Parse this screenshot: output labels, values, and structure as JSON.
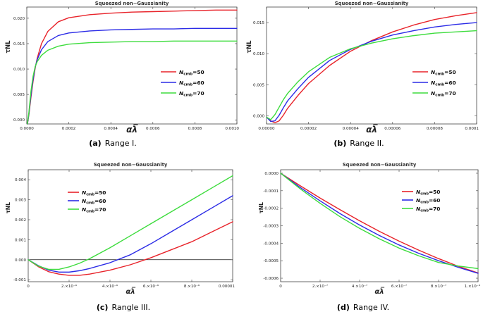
{
  "colors": {
    "red": "#e8232a",
    "blue": "#2b2be6",
    "green": "#3ddc3d"
  },
  "chart_data": [
    {
      "type": "line",
      "panel": "a",
      "title": "Squeezed non−Gaussianity",
      "ylabel": "τNL",
      "xlabel": "αλ̅",
      "caption_label": "(a)",
      "caption_text": "Range I.",
      "xlim": [
        0,
        0.001
      ],
      "ylim": [
        -0.0008,
        0.0222
      ],
      "xticks": [
        0,
        0.0002,
        0.0004,
        0.0006,
        0.0008,
        0.001
      ],
      "xtick_labels": [
        "0.0000",
        "0.0002",
        "0.0004",
        "0.0006",
        "0.0008",
        "0.0010"
      ],
      "yticks": [
        0,
        0.005,
        0.01,
        0.015,
        0.02
      ],
      "ytick_labels": [
        "0.000",
        "0.005",
        "0.010",
        "0.015",
        "0.020"
      ],
      "zero_line": false,
      "legend_position": "right-middle",
      "legend": [
        "N_cmb=50",
        "N_cmb=60",
        "N_cmb=70"
      ],
      "series": [
        {
          "name": "N_cmb=50",
          "color": "red",
          "x": [
            3e-06,
            1e-05,
            2e-05,
            3e-05,
            4e-05,
            5e-05,
            7e-05,
            0.0001,
            0.00015,
            0.0002,
            0.0003,
            0.0004,
            0.0005,
            0.0006,
            0.0007,
            0.0008,
            0.0009,
            0.001
          ],
          "y": [
            -0.0008,
            0.001,
            0.0045,
            0.0076,
            0.0102,
            0.0122,
            0.015,
            0.0174,
            0.0193,
            0.0201,
            0.0207,
            0.021,
            0.0212,
            0.0213,
            0.0214,
            0.0215,
            0.0216,
            0.0216
          ]
        },
        {
          "name": "N_cmb=60",
          "color": "blue",
          "x": [
            3e-06,
            1e-05,
            2e-05,
            3e-05,
            4e-05,
            5e-05,
            7e-05,
            0.0001,
            0.00015,
            0.0002,
            0.0003,
            0.0004,
            0.0005,
            0.0006,
            0.0007,
            0.0008,
            0.0009,
            0.001
          ],
          "y": [
            -0.0008,
            0.0012,
            0.005,
            0.008,
            0.0104,
            0.0119,
            0.0138,
            0.0154,
            0.0166,
            0.0171,
            0.0175,
            0.0177,
            0.0178,
            0.0179,
            0.0179,
            0.018,
            0.018,
            0.018
          ]
        },
        {
          "name": "N_cmb=70",
          "color": "green",
          "x": [
            3e-06,
            1e-05,
            2e-05,
            3e-05,
            4e-05,
            5e-05,
            7e-05,
            0.0001,
            0.00015,
            0.0002,
            0.0003,
            0.0004,
            0.0005,
            0.0006,
            0.0007,
            0.0008,
            0.0009,
            0.001
          ],
          "y": [
            -0.0008,
            0.0015,
            0.0057,
            0.0086,
            0.0105,
            0.0115,
            0.0127,
            0.0137,
            0.0145,
            0.0149,
            0.0152,
            0.0153,
            0.0154,
            0.0154,
            0.0155,
            0.0155,
            0.0155,
            0.0155
          ]
        }
      ]
    },
    {
      "type": "line",
      "panel": "b",
      "title": "Squeezed non−Gaussianity",
      "ylabel": "τNL",
      "xlabel": "αλ̅",
      "caption_label": "(b)",
      "caption_text": "Range II.",
      "xlim": [
        0,
        0.0001
      ],
      "ylim": [
        -0.0013,
        0.0175
      ],
      "xticks": [
        0,
        2e-05,
        4e-05,
        6e-05,
        8e-05,
        0.0001
      ],
      "xtick_labels": [
        "0.00000",
        "0.00002",
        "0.00004",
        "0.00006",
        "0.00008",
        "0.0001"
      ],
      "yticks": [
        0,
        0.005,
        0.01,
        0.015
      ],
      "ytick_labels": [
        "0.000",
        "0.005",
        "0.010",
        "0.015"
      ],
      "zero_line": false,
      "legend_position": "right-middle",
      "legend": [
        "N_cmb=50",
        "N_cmb=60",
        "N_cmb=70"
      ],
      "series": [
        {
          "name": "N_cmb=50",
          "color": "red",
          "x": [
            0,
            2e-06,
            4e-06,
            6e-06,
            8e-06,
            1e-05,
            1.5e-05,
            2e-05,
            3e-05,
            4e-05,
            5e-05,
            6e-05,
            7e-05,
            8e-05,
            9e-05,
            0.0001
          ],
          "y": [
            -0.0002,
            -0.0008,
            -0.0011,
            -0.0008,
            0.0001,
            0.0012,
            0.0033,
            0.0052,
            0.0081,
            0.0104,
            0.0121,
            0.0135,
            0.0146,
            0.0155,
            0.0161,
            0.0166
          ]
        },
        {
          "name": "N_cmb=60",
          "color": "blue",
          "x": [
            0,
            2e-06,
            4e-06,
            6e-06,
            8e-06,
            1e-05,
            1.5e-05,
            2e-05,
            3e-05,
            4e-05,
            5e-05,
            6e-05,
            7e-05,
            8e-05,
            9e-05,
            0.0001
          ],
          "y": [
            -0.0002,
            -0.0009,
            -0.0008,
            0.0001,
            0.0013,
            0.0024,
            0.0044,
            0.0062,
            0.0089,
            0.0107,
            0.012,
            0.013,
            0.0137,
            0.0143,
            0.0147,
            0.015
          ]
        },
        {
          "name": "N_cmb=70",
          "color": "green",
          "x": [
            0,
            2e-06,
            4e-06,
            6e-06,
            8e-06,
            1e-05,
            1.5e-05,
            2e-05,
            3e-05,
            4e-05,
            5e-05,
            6e-05,
            7e-05,
            8e-05,
            9e-05,
            0.0001
          ],
          "y": [
            -0.0002,
            -0.0006,
            0.0002,
            0.0014,
            0.0026,
            0.0036,
            0.0055,
            0.0071,
            0.0094,
            0.0108,
            0.0117,
            0.0124,
            0.0129,
            0.0133,
            0.0135,
            0.0137
          ]
        }
      ]
    },
    {
      "type": "line",
      "panel": "c",
      "title": "Squeezed non−Gaussianity",
      "ylabel": "τNL",
      "xlabel": "αλ̅",
      "caption_label": "(c)",
      "caption_text": "Rangle III.",
      "xlim": [
        0,
        1e-05
      ],
      "ylim": [
        -0.0011,
        0.0045
      ],
      "xticks": [
        0,
        2e-06,
        4e-06,
        6e-06,
        8e-06,
        1e-05
      ],
      "xtick_labels": [
        "0",
        "2.×10⁻⁶",
        "4.×10⁻⁶",
        "6.×10⁻⁶",
        "8.×10⁻⁶",
        "0.00001"
      ],
      "yticks": [
        -0.001,
        0,
        0.001,
        0.002,
        0.003,
        0.004
      ],
      "ytick_labels": [
        "-0.001",
        "0.000",
        "0.001",
        "0.002",
        "0.003",
        "0.004"
      ],
      "zero_line": true,
      "legend_position": "top-left",
      "legend": [
        "N_cmb=50",
        "N_cmb=60",
        "N_cmb=70"
      ],
      "series": [
        {
          "name": "N_cmb=50",
          "color": "red",
          "x": [
            0,
            5e-07,
            1e-06,
            1.5e-06,
            2e-06,
            2.5e-06,
            3e-06,
            4e-06,
            5e-06,
            6e-06,
            7e-06,
            8e-06,
            9e-06,
            1e-05
          ],
          "y": [
            0,
            -0.00035,
            -0.0006,
            -0.00072,
            -0.00078,
            -0.00078,
            -0.00072,
            -0.00052,
            -0.00025,
            0.0001,
            0.0005,
            0.0009,
            0.0014,
            0.0019
          ]
        },
        {
          "name": "N_cmb=60",
          "color": "blue",
          "x": [
            0,
            5e-07,
            1e-06,
            1.5e-06,
            2e-06,
            2.5e-06,
            3e-06,
            4e-06,
            5e-06,
            6e-06,
            7e-06,
            8e-06,
            9e-06,
            1e-05
          ],
          "y": [
            0,
            -0.0003,
            -0.00052,
            -0.00062,
            -0.00062,
            -0.00055,
            -0.00044,
            -0.00015,
            0.00025,
            0.0008,
            0.0014,
            0.002,
            0.0026,
            0.0032
          ]
        },
        {
          "name": "N_cmb=70",
          "color": "green",
          "x": [
            0,
            5e-07,
            1e-06,
            1.5e-06,
            2e-06,
            2.5e-06,
            3e-06,
            4e-06,
            5e-06,
            6e-06,
            7e-06,
            8e-06,
            9e-06,
            1e-05
          ],
          "y": [
            0,
            -0.00032,
            -0.00048,
            -0.00048,
            -0.00036,
            -0.00018,
            5e-05,
            0.0006,
            0.0012,
            0.0018,
            0.0024,
            0.003,
            0.0036,
            0.0042
          ]
        }
      ]
    },
    {
      "type": "line",
      "panel": "d",
      "title": "Squeezed non−Gaussianity",
      "ylabel": "τNL",
      "xlabel": "αλ̅",
      "caption_label": "(d)",
      "caption_text": "Range IV.",
      "xlim": [
        0,
        1e-06
      ],
      "ylim": [
        -0.00062,
        2e-05
      ],
      "xticks": [
        0,
        2e-07,
        4e-07,
        6e-07,
        8e-07,
        1e-06
      ],
      "xtick_labels": [
        "0",
        "2.×10⁻⁷",
        "4.×10⁻⁷",
        "6.×10⁻⁷",
        "8.×10⁻⁷",
        "1.×10⁻⁶"
      ],
      "yticks": [
        0,
        -0.0001,
        -0.0002,
        -0.0003,
        -0.0004,
        -0.0005,
        -0.0006
      ],
      "ytick_labels": [
        "0.0000",
        "-0.0001",
        "-0.0002",
        "-0.0003",
        "-0.0004",
        "-0.0005",
        "-0.0006"
      ],
      "zero_line": false,
      "legend_position": "top-right",
      "legend": [
        "N_cmb=50",
        "N_cmb=60",
        "N_cmb=70"
      ],
      "series": [
        {
          "name": "N_cmb=50",
          "color": "red",
          "x": [
            0,
            1e-07,
            2e-07,
            3e-07,
            4e-07,
            5e-07,
            6e-07,
            7e-07,
            8e-07,
            9e-07,
            1e-06
          ],
          "y": [
            0,
            -7.2e-05,
            -0.000142,
            -0.000208,
            -0.000272,
            -0.000332,
            -0.000388,
            -0.00044,
            -0.000488,
            -0.000532,
            -0.00057
          ]
        },
        {
          "name": "N_cmb=60",
          "color": "blue",
          "x": [
            0,
            1e-07,
            2e-07,
            3e-07,
            4e-07,
            5e-07,
            6e-07,
            7e-07,
            8e-07,
            9e-07,
            1e-06
          ],
          "y": [
            0,
            -8.2e-05,
            -0.000158,
            -0.00023,
            -0.000296,
            -0.000356,
            -0.00041,
            -0.000458,
            -0.0005,
            -0.000538,
            -0.000572
          ]
        },
        {
          "name": "N_cmb=70",
          "color": "green",
          "x": [
            0,
            1e-07,
            2e-07,
            3e-07,
            4e-07,
            5e-07,
            6e-07,
            7e-07,
            8e-07,
            9e-07,
            1e-06
          ],
          "y": [
            0,
            -9e-05,
            -0.000172,
            -0.000248,
            -0.000315,
            -0.000375,
            -0.000428,
            -0.000472,
            -0.00051,
            -0.00053,
            -0.000545
          ]
        }
      ]
    }
  ]
}
